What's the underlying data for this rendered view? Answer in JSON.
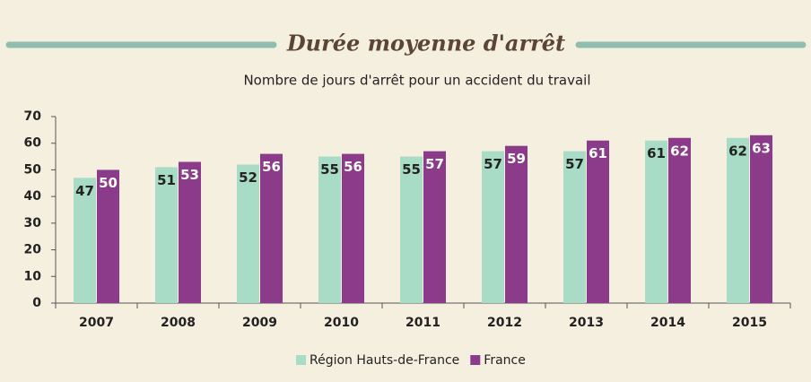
{
  "chart_data": {
    "type": "bar",
    "title": "Durée moyenne d'arrêt",
    "subtitle": "Nombre de jours d'arrêt pour un accident du travail",
    "categories": [
      "2007",
      "2008",
      "2009",
      "2010",
      "2011",
      "2012",
      "2013",
      "2014",
      "2015"
    ],
    "series": [
      {
        "name": "Région Hauts-de-France",
        "color": "#a8dcc6",
        "values": [
          47,
          51,
          52,
          55,
          55,
          57,
          57,
          61,
          62
        ]
      },
      {
        "name": "France",
        "color": "#8c3b8a",
        "values": [
          50,
          53,
          56,
          56,
          57,
          59,
          61,
          62,
          63
        ]
      }
    ],
    "ylim": [
      0,
      70
    ],
    "yticks": [
      0,
      10,
      20,
      30,
      40,
      50,
      60,
      70
    ],
    "grid": false,
    "legend": "bottom"
  }
}
